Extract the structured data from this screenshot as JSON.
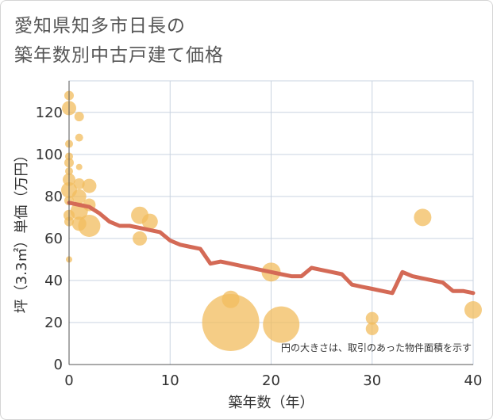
{
  "title_lines": [
    "愛知県知多市日長の",
    "築年数別中古戸建て価格"
  ],
  "note": "円の大きさは、取引のあった物件面積を示す",
  "colors": {
    "bubble": "#f2bc5e",
    "line": "#d46a56",
    "grid": "#c9d3e0",
    "axis_text": "#333333"
  },
  "chart_data": {
    "type": "scatter",
    "xlabel": "築年数（年）",
    "ylabel": "坪（3.3㎡）単価（万円）",
    "xlim": [
      0,
      40
    ],
    "ylim": [
      0,
      135
    ],
    "xticks": [
      0,
      10,
      20,
      30,
      40
    ],
    "yticks": [
      0,
      20,
      40,
      60,
      80,
      100,
      120
    ],
    "bubbles": [
      {
        "x": 0,
        "y": 128,
        "s": 6
      },
      {
        "x": 0,
        "y": 122,
        "s": 9
      },
      {
        "x": 1,
        "y": 118,
        "s": 6
      },
      {
        "x": 1,
        "y": 108,
        "s": 5
      },
      {
        "x": 0,
        "y": 105,
        "s": 5
      },
      {
        "x": 0,
        "y": 99,
        "s": 5
      },
      {
        "x": 0,
        "y": 96,
        "s": 6
      },
      {
        "x": 1,
        "y": 94,
        "s": 4
      },
      {
        "x": 0,
        "y": 92,
        "s": 5
      },
      {
        "x": 0,
        "y": 88,
        "s": 8
      },
      {
        "x": 1,
        "y": 86,
        "s": 7
      },
      {
        "x": 2,
        "y": 85,
        "s": 9
      },
      {
        "x": 0,
        "y": 83,
        "s": 10
      },
      {
        "x": 1,
        "y": 80,
        "s": 9
      },
      {
        "x": 0,
        "y": 78,
        "s": 6
      },
      {
        "x": 2,
        "y": 76,
        "s": 8
      },
      {
        "x": 1,
        "y": 73,
        "s": 11
      },
      {
        "x": 0,
        "y": 71,
        "s": 7
      },
      {
        "x": 0,
        "y": 68,
        "s": 6
      },
      {
        "x": 1,
        "y": 67,
        "s": 9
      },
      {
        "x": 2,
        "y": 66,
        "s": 14
      },
      {
        "x": 0,
        "y": 50,
        "s": 4
      },
      {
        "x": 7,
        "y": 71,
        "s": 11
      },
      {
        "x": 8,
        "y": 68,
        "s": 10
      },
      {
        "x": 7,
        "y": 60,
        "s": 9
      },
      {
        "x": 16,
        "y": 31,
        "s": 11
      },
      {
        "x": 16,
        "y": 20,
        "s": 36
      },
      {
        "x": 20,
        "y": 44,
        "s": 12
      },
      {
        "x": 21,
        "y": 19,
        "s": 23
      },
      {
        "x": 30,
        "y": 22,
        "s": 8
      },
      {
        "x": 30,
        "y": 17,
        "s": 8
      },
      {
        "x": 35,
        "y": 70,
        "s": 11
      },
      {
        "x": 40,
        "y": 26,
        "s": 11
      }
    ],
    "trend_line": {
      "x": [
        0,
        1,
        2,
        3,
        4,
        5,
        6,
        7,
        8,
        9,
        10,
        11,
        12,
        13,
        14,
        15,
        16,
        17,
        18,
        19,
        20,
        21,
        22,
        23,
        24,
        25,
        26,
        27,
        28,
        29,
        30,
        31,
        32,
        33,
        34,
        35,
        36,
        37,
        38,
        39,
        40
      ],
      "y": [
        77,
        76,
        75,
        72,
        68,
        66,
        66,
        65,
        64,
        63,
        59,
        57,
        56,
        55,
        48,
        49,
        48,
        47,
        46,
        45,
        44,
        43,
        42,
        42,
        46,
        45,
        44,
        43,
        38,
        37,
        36,
        35,
        34,
        44,
        42,
        41,
        40,
        39,
        35,
        35,
        34
      ]
    }
  }
}
